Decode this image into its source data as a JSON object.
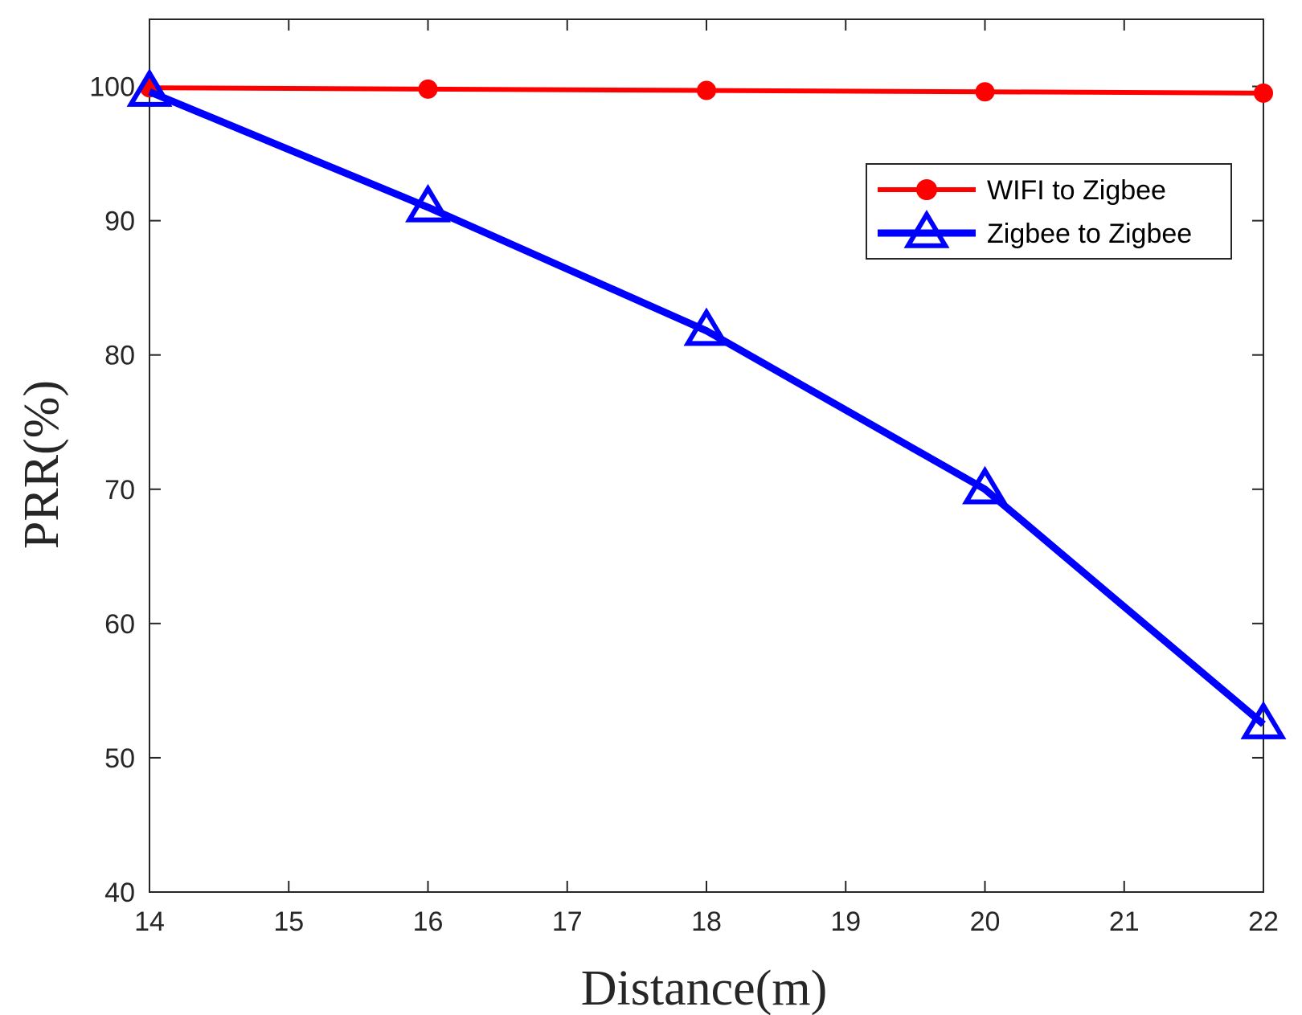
{
  "chart_data": {
    "type": "line",
    "title": "",
    "xlabel": "Distance(m)",
    "ylabel": "PRR(%)",
    "xlim": [
      14,
      22
    ],
    "ylim": [
      40,
      105
    ],
    "xticks": [
      14,
      15,
      16,
      17,
      18,
      19,
      20,
      21,
      22
    ],
    "yticks": [
      40,
      50,
      60,
      70,
      80,
      90,
      100
    ],
    "x": [
      14,
      16,
      18,
      20,
      22
    ],
    "series": [
      {
        "name": "WIFI to Zigbee",
        "color": "#ff0000",
        "marker": "circle",
        "values": [
          99.9,
          99.8,
          99.7,
          99.6,
          99.5
        ]
      },
      {
        "name": "Zigbee to Zigbee",
        "color": "#0000ff",
        "marker": "triangle",
        "values": [
          99.6,
          91.0,
          81.8,
          70.0,
          52.5
        ]
      }
    ],
    "legend_position": "top-right",
    "grid": false
  }
}
